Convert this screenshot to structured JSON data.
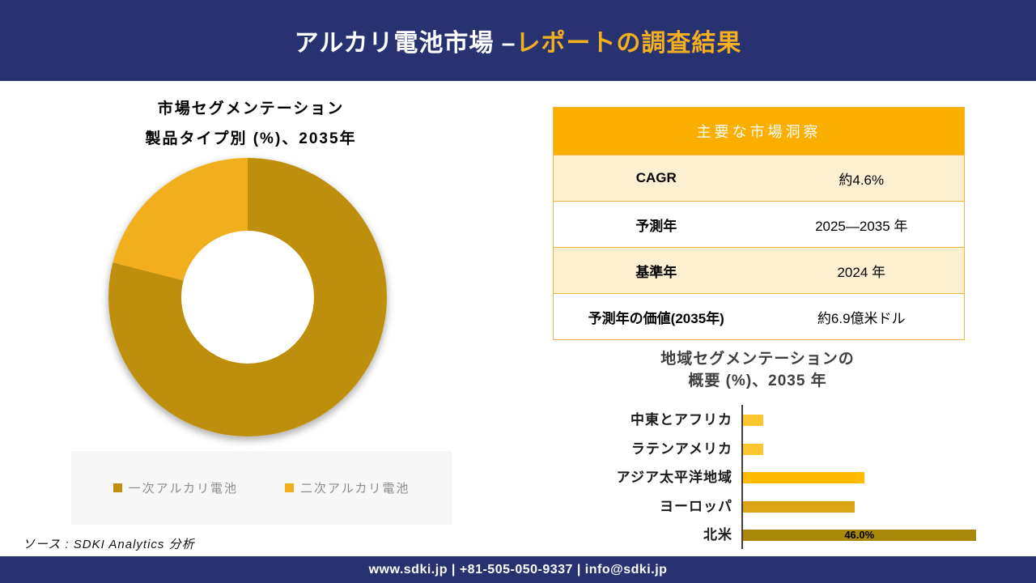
{
  "header": {
    "title_main": "アルカリ電池市場 –",
    "title_accent": "レポートの調査結果"
  },
  "donut_section": {
    "title_line1": "市場セグメンテーション",
    "title_line2": "製品タイプ別 (%)、2035年"
  },
  "insights_table": {
    "header": "主要な市場洞察",
    "rows": [
      {
        "label": "CAGR",
        "value": "約4.6%"
      },
      {
        "label": "予測年",
        "value": "2025—2035 年"
      },
      {
        "label": "基準年",
        "value": "2024 年"
      },
      {
        "label": "予測年の価値(2035年)",
        "value": "約6.9億米ドル"
      }
    ]
  },
  "regional_section": {
    "title_line1": "地域セグメンテーションの",
    "title_line2": "概要 (%)、2035 年"
  },
  "source": "ソース : SDKI Analytics 分析",
  "footer": "www.sdki.jp | +81-505-050-9337 | info@sdki.jp",
  "colors": {
    "navy": "#293271",
    "title_accent": "#F2B01E",
    "table_header": "#F9AE00",
    "table_row_cream": "#FDF0D1",
    "table_border": "#F0B43F",
    "legend_background": "#F7F7F7"
  },
  "chart_data": [
    {
      "type": "pie",
      "donut": true,
      "title": "市場セグメンテーション 製品タイプ別 (%)、2035年",
      "labels": [
        "一次アルカリ電池",
        "二次アルカリ電池"
      ],
      "values": [
        79,
        21
      ],
      "colors": [
        "#BE8F0C",
        "#F2AF1D"
      ],
      "legend_position": "bottom"
    },
    {
      "type": "bar",
      "orientation": "horizontal",
      "title": "地域セグメンテーションの概要 (%)、2035 年",
      "categories": [
        "中東とアフリカ",
        "ラテンアメリカ",
        "アジア太平洋地域",
        "ヨーロッパ",
        "北米"
      ],
      "values": [
        4,
        4,
        24,
        22,
        46
      ],
      "colors": [
        "#FFC72F",
        "#FFC72F",
        "#FFB900",
        "#DBA315",
        "#A9880A"
      ],
      "data_labels": [
        "",
        "",
        "",
        "",
        "46.0%"
      ],
      "xlabel": "",
      "ylabel": "",
      "xlim": [
        0,
        48
      ],
      "grid": false,
      "legend_position": "none"
    }
  ]
}
